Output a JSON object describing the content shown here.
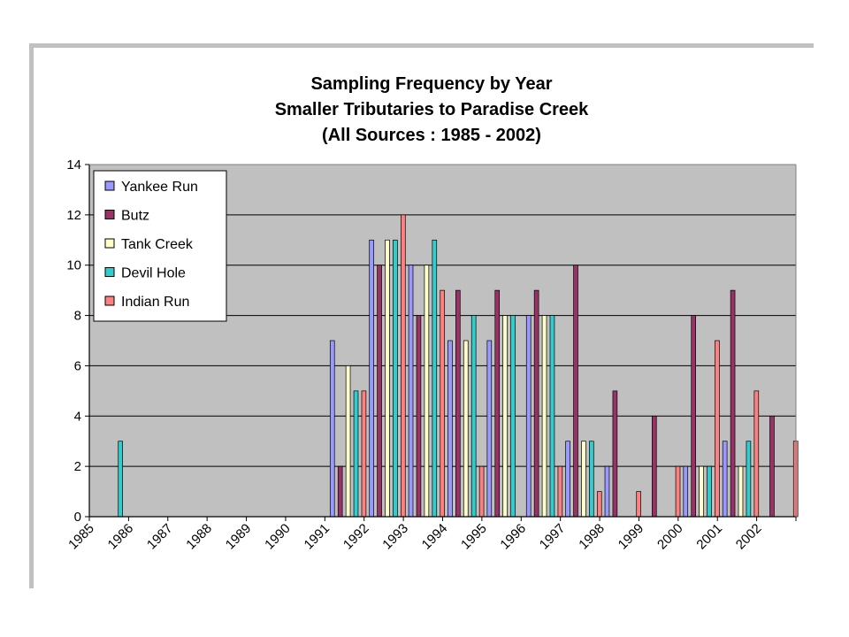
{
  "chart_data": {
    "type": "bar",
    "title": [
      "Sampling Frequency by Year",
      "Smaller Tributaries to Paradise Creek",
      "(All Sources : 1985 - 2002)"
    ],
    "xlabel": "",
    "ylabel": "",
    "categories": [
      "1985",
      "1986",
      "1987",
      "1988",
      "1989",
      "1990",
      "1991",
      "1992",
      "1993",
      "1994",
      "1995",
      "1996",
      "1997",
      "1998",
      "1999",
      "2000",
      "2001",
      "2002"
    ],
    "ylim": [
      0,
      14
    ],
    "yticks": [
      0,
      2,
      4,
      6,
      8,
      10,
      12,
      14
    ],
    "grid": true,
    "legend_position": "top-left",
    "series": [
      {
        "name": "Yankee Run",
        "color": "#9999ff",
        "values": [
          0,
          0,
          0,
          0,
          0,
          0,
          7,
          11,
          10,
          7,
          7,
          8,
          3,
          2,
          0,
          2,
          3,
          0
        ]
      },
      {
        "name": "Butz",
        "color": "#993366",
        "values": [
          0,
          0,
          0,
          0,
          0,
          0,
          2,
          10,
          8,
          9,
          9,
          9,
          10,
          5,
          4,
          8,
          9,
          4
        ]
      },
      {
        "name": "Tank Creek",
        "color": "#ffffcc",
        "values": [
          0,
          0,
          0,
          0,
          0,
          0,
          6,
          11,
          10,
          7,
          8,
          8,
          3,
          0,
          0,
          2,
          2,
          0
        ]
      },
      {
        "name": "Devil Hole",
        "color": "#33cccc",
        "values": [
          3,
          0,
          0,
          0,
          0,
          0,
          5,
          11,
          11,
          8,
          8,
          8,
          3,
          0,
          0,
          2,
          3,
          0
        ]
      },
      {
        "name": "Indian Run",
        "color": "#ff8080",
        "values": [
          0,
          0,
          0,
          0,
          0,
          0,
          5,
          12,
          9,
          2,
          0,
          2,
          1,
          1,
          2,
          7,
          5,
          3
        ]
      }
    ]
  }
}
